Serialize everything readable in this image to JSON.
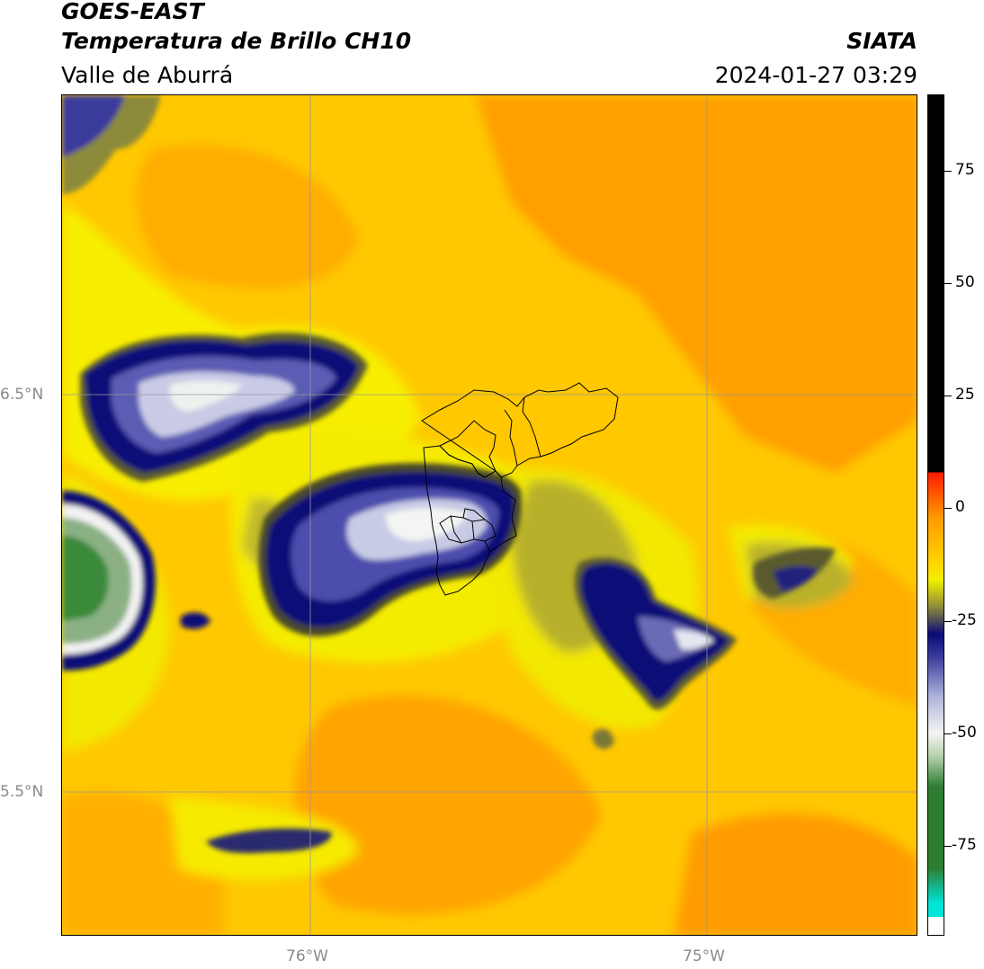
{
  "header": {
    "satellite": "GOES-EAST",
    "product": "Temperatura de Brillo CH10",
    "region": "Valle de Aburrá",
    "agency": "SIATA",
    "datetime": "2024-01-27 03:29"
  },
  "map": {
    "lat_labels": [
      "6.5°N",
      "5.5°N"
    ],
    "lon_labels": [
      "76°W",
      "75°W"
    ]
  },
  "colorbar": {
    "ticks": [
      "75",
      "50",
      "25",
      "0",
      "-25",
      "-50",
      "-75"
    ],
    "tick_values": [
      75,
      50,
      25,
      0,
      -25,
      -50,
      -75
    ],
    "range": [
      -95,
      92
    ],
    "colors": {
      "cold_min": "#ffffff",
      "cyan": "#00e5d8",
      "green_dark": "#2e7d32",
      "green_light": "#b9d3b0",
      "white": "#f4f4f4",
      "blue_light": "#aeb4dc",
      "blue": "#3a3a9c",
      "navy": "#0a0a78",
      "olive": "#8c8a3a",
      "yellow": "#f2ef00",
      "yellow_orange": "#ffd400",
      "orange": "#ff9a00",
      "red": "#ff1a00",
      "black": "#000000"
    }
  }
}
